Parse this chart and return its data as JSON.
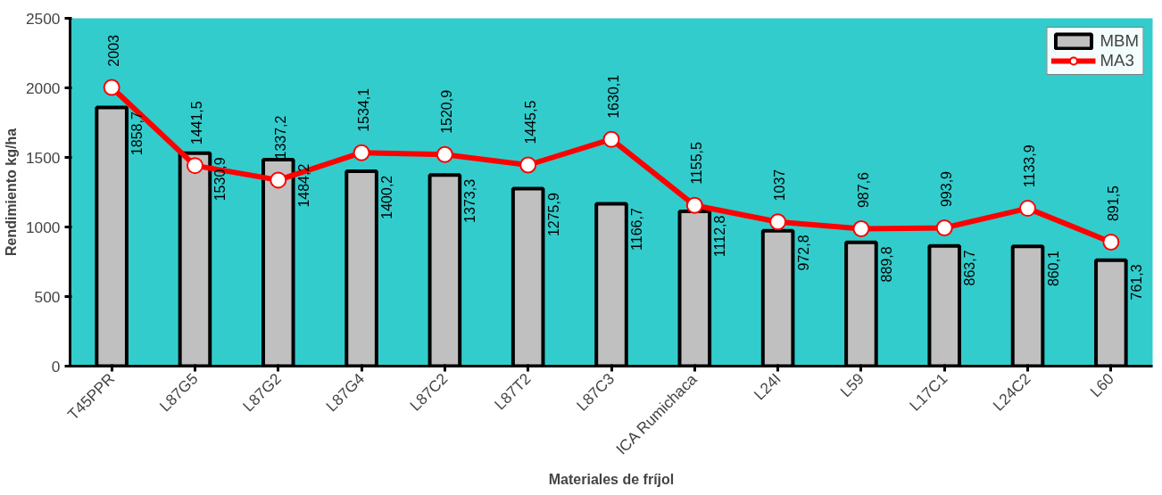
{
  "chart_data": {
    "type": "bar",
    "xlabel": "Materiales de fríjol",
    "ylabel": "Rendimiento kg/ha",
    "categories": [
      "T45PPR",
      "L87G5",
      "L87G2",
      "L87G4",
      "L87C2",
      "L87T2",
      "L87C3",
      "ICA Rumichaca",
      "L24I",
      "L59",
      "L17C1",
      "L24C2",
      "L60"
    ],
    "ylim": [
      0,
      2500
    ],
    "yticks": [
      0,
      500,
      1000,
      1500,
      2000,
      2500
    ],
    "grid": false,
    "legend": "top right",
    "marker": "circle",
    "line_style": "solid",
    "series": [
      {
        "name": "MBM",
        "color": "#c0c0c0",
        "values": [
          1858.7,
          1530.9,
          1484.2,
          1400.2,
          1373.3,
          1275.9,
          1166.7,
          1112.8,
          972.8,
          889.8,
          863.7,
          860.1,
          761.3
        ],
        "value_labels": [
          "1858,7",
          "1530,9",
          "1484,2",
          "1400,2",
          "1373,3",
          "1275,9",
          "1166,7",
          "1112,8",
          "972,8",
          "889,8",
          "863,7",
          "860,1",
          "761,3"
        ]
      },
      {
        "name": "MA3",
        "type": "line",
        "color": "#ff0000",
        "values": [
          2003,
          1441.5,
          1337.2,
          1534.1,
          1520.9,
          1445.5,
          1630.1,
          1155.5,
          1037,
          987.6,
          993.9,
          1133.9,
          891.5
        ],
        "value_labels": [
          "2003",
          "1441,5",
          "1337,2",
          "1534,1",
          "1520,9",
          "1445,5",
          "1630,1",
          "1155,5",
          "1037",
          "987,6",
          "993,9",
          "1133,9",
          "891,5"
        ]
      }
    ]
  }
}
